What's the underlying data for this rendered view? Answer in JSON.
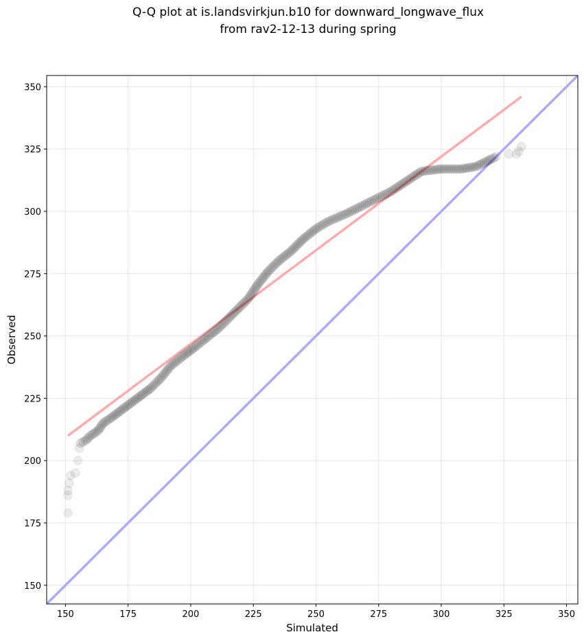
{
  "chart_data": {
    "type": "scatter",
    "title_line1": "Q-Q plot at is.landsvirkjun.b10 for downward_longwave_flux",
    "title_line2": "from rav2-12-13 during spring",
    "xlabel": "Simulated",
    "ylabel": "Observed",
    "xlim": [
      142.5,
      354.5
    ],
    "ylim": [
      142.5,
      354.5
    ],
    "xticks": [
      150,
      175,
      200,
      225,
      250,
      275,
      300,
      325,
      350
    ],
    "yticks": [
      150,
      175,
      200,
      225,
      250,
      275,
      300,
      325,
      350
    ],
    "grid": true,
    "quantile_points_anchors": [
      [
        151,
        179
      ],
      [
        151,
        186
      ],
      [
        151,
        188
      ],
      [
        151.5,
        191
      ],
      [
        152,
        194
      ],
      [
        154,
        195
      ],
      [
        155,
        200
      ],
      [
        155.5,
        205
      ],
      [
        156,
        207
      ],
      [
        158,
        208
      ],
      [
        160,
        210
      ],
      [
        163,
        212
      ],
      [
        165,
        215
      ],
      [
        168,
        217
      ],
      [
        172,
        220
      ],
      [
        176,
        223
      ],
      [
        180,
        226
      ],
      [
        184,
        229
      ],
      [
        188,
        233
      ],
      [
        192,
        238
      ],
      [
        197,
        242
      ],
      [
        201,
        245
      ],
      [
        206,
        249
      ],
      [
        211,
        253
      ],
      [
        215,
        257
      ],
      [
        219,
        261
      ],
      [
        223,
        265
      ],
      [
        227,
        271
      ],
      [
        231,
        276
      ],
      [
        235,
        280
      ],
      [
        240,
        284
      ],
      [
        245,
        289
      ],
      [
        250,
        293
      ],
      [
        255,
        296
      ],
      [
        262,
        299
      ],
      [
        268,
        302
      ],
      [
        274,
        305
      ],
      [
        280,
        308
      ],
      [
        286,
        312
      ],
      [
        292,
        316
      ],
      [
        300,
        317
      ],
      [
        308,
        317
      ],
      [
        314,
        318
      ],
      [
        318,
        320
      ],
      [
        322,
        322
      ],
      [
        327,
        323
      ],
      [
        330,
        323
      ],
      [
        331,
        324
      ],
      [
        332,
        326
      ]
    ],
    "reference_lines": [
      {
        "name": "1:1 line",
        "color": "#aaaaff",
        "points": [
          [
            142.5,
            142.5
          ],
          [
            354.5,
            354.5
          ]
        ]
      },
      {
        "name": "fit line",
        "color": "#ffaaaa",
        "points": [
          [
            151,
            210
          ],
          [
            332,
            346
          ]
        ]
      }
    ],
    "point_color": "#000000"
  }
}
